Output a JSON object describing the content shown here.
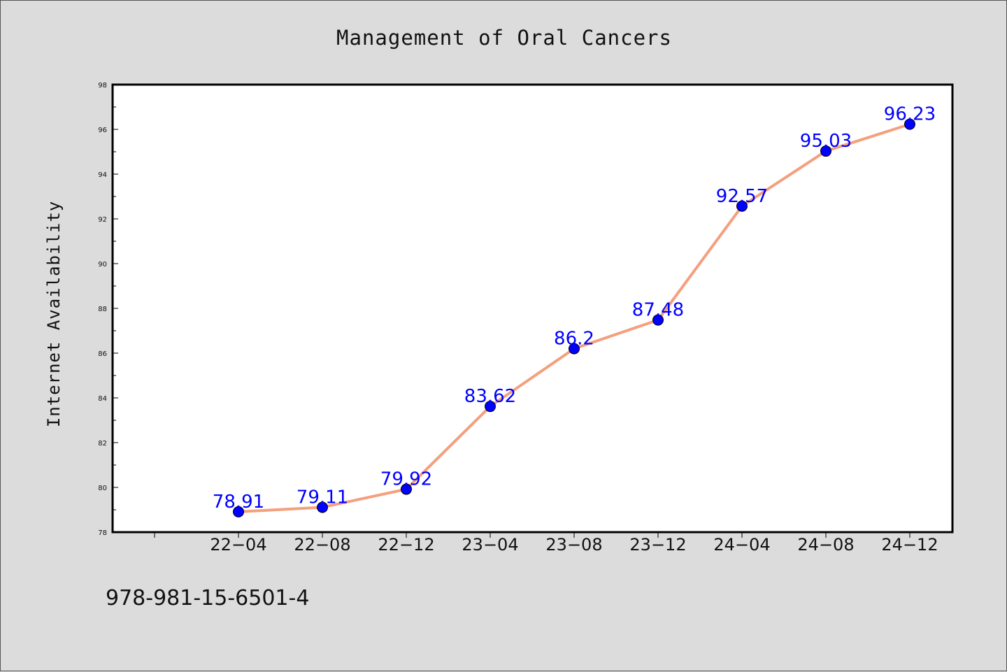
{
  "footer_text": "978-981-15-6501-4",
  "chart_data": {
    "type": "line",
    "title": "Management of Oral Cancers",
    "xlabel": "",
    "ylabel": "Internet Availability",
    "categories": [
      "22-04",
      "22-08",
      "22-12",
      "23-04",
      "23-08",
      "23-12",
      "24-04",
      "24-08",
      "24-12"
    ],
    "x_tick_labels": [
      "22−04",
      "22−08",
      "22−12",
      "23−04",
      "23−08",
      "23−12",
      "24−04",
      "24−08",
      "24−12"
    ],
    "values": [
      78.91,
      79.11,
      79.92,
      83.62,
      86.2,
      87.48,
      92.57,
      95.03,
      96.23
    ],
    "data_labels": [
      "78.91",
      "79.11",
      "79.92",
      "83.62",
      "86.2",
      "87.48",
      "92.57",
      "95.03",
      "96.23"
    ],
    "ylim": [
      78,
      98
    ],
    "y_ticks": [
      78,
      80,
      82,
      84,
      86,
      88,
      90,
      92,
      94,
      96,
      98
    ],
    "grid": false,
    "legend": "none",
    "colors": {
      "line": "#f4a07e",
      "marker": "#0000ff",
      "marker_edge": "#000000",
      "data_label": "#0000ff",
      "plot_background": "#ffffff",
      "figure_background": "#dcdcdc"
    }
  }
}
